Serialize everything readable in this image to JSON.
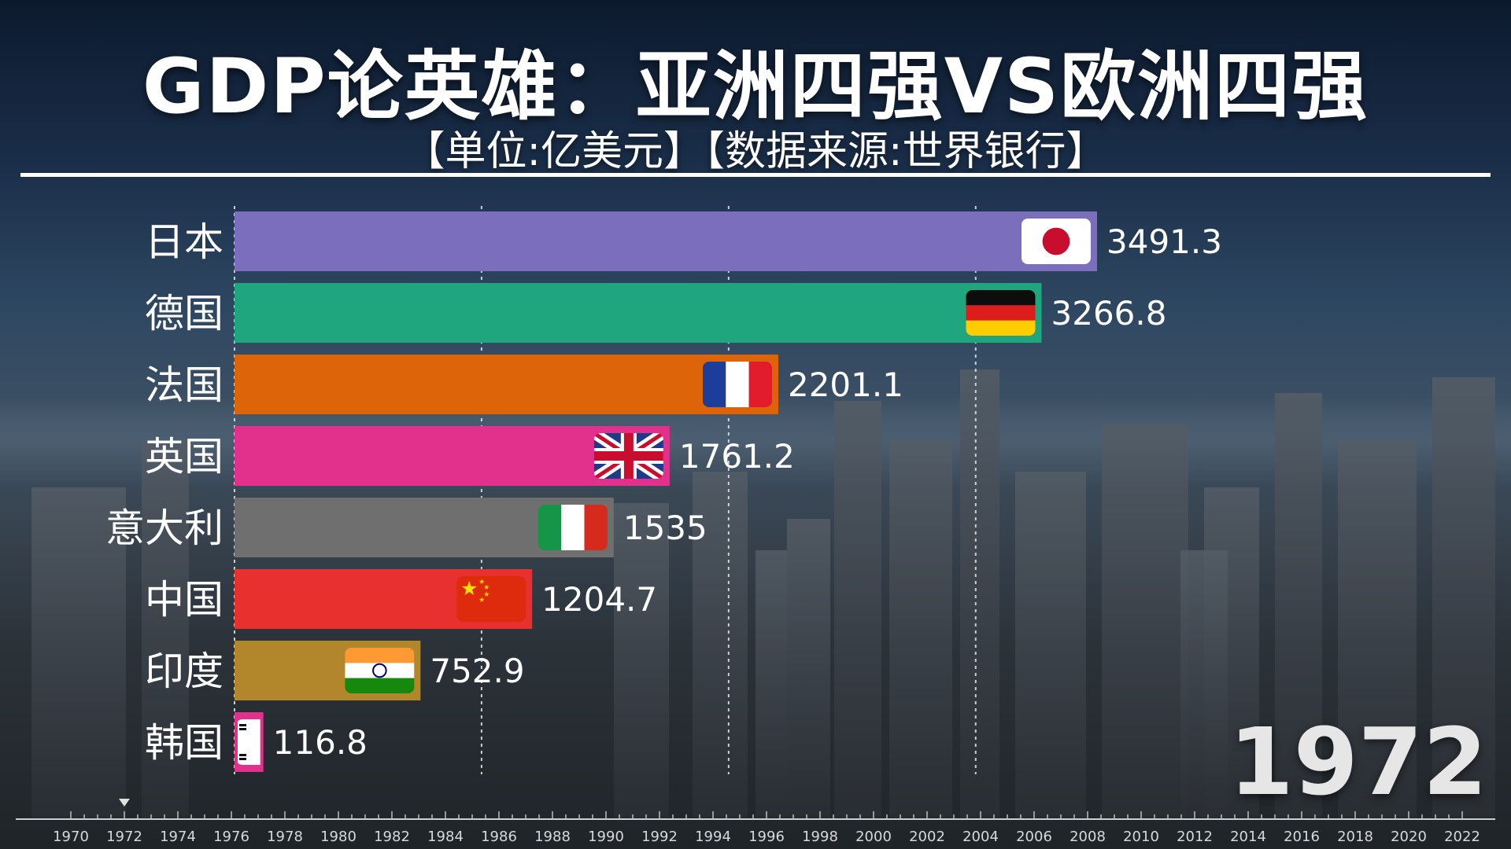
{
  "header": {
    "title": "GDP论英雄：亚洲四强VS欧洲四强",
    "subtitle": "【单位:亿美元】【数据来源:世界银行】"
  },
  "current_year": "1972",
  "chart_data": {
    "type": "bar",
    "orientation": "horizontal",
    "title": "GDP论英雄：亚洲四强VS欧洲四强",
    "subtitle": "【单位:亿美元】【数据来源:世界银行】",
    "categories": [
      "日本",
      "德国",
      "法国",
      "英国",
      "意大利",
      "中国",
      "印度",
      "韩国"
    ],
    "values": [
      3491.3,
      3266.8,
      2201.1,
      1761.2,
      1535,
      1204.7,
      752.9,
      116.8
    ],
    "value_labels": [
      "3491.3",
      "3266.8",
      "2201.1",
      "1761.2",
      "1535",
      "1204.7",
      "752.9",
      "116.8"
    ],
    "colors": [
      "#7b6fbd",
      "#20a67f",
      "#dd6409",
      "#e1318c",
      "#6f6f6f",
      "#e8302f",
      "#b2862a",
      "#e1318c"
    ],
    "flags": [
      "japan-flag",
      "germany-flag",
      "france-flag",
      "uk-flag",
      "italy-flag",
      "china-flag",
      "india-flag",
      "korea-flag"
    ],
    "xlim": [
      0,
      4000
    ],
    "gridlines": [
      1000,
      2000,
      3000
    ],
    "grid": true,
    "timeline": {
      "ticks": [
        "1970",
        "1972",
        "1974",
        "1976",
        "1978",
        "1980",
        "1982",
        "1984",
        "1986",
        "1988",
        "1990",
        "1992",
        "1994",
        "1996",
        "1998",
        "2000",
        "2002",
        "2004",
        "2006",
        "2008",
        "2010",
        "2012",
        "2014",
        "2016",
        "2018",
        "2020",
        "2022"
      ],
      "current": "1972"
    }
  }
}
